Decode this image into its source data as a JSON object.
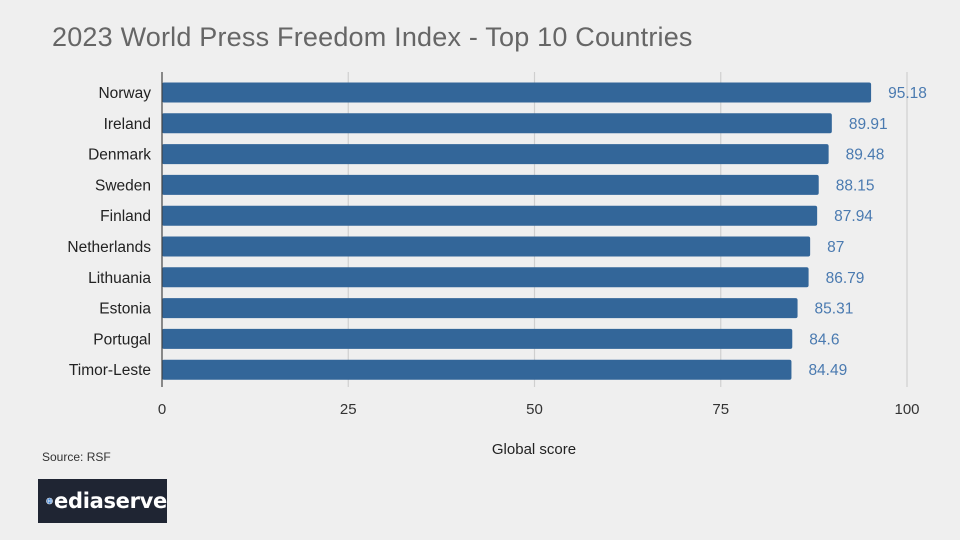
{
  "chart_data": {
    "type": "bar",
    "orientation": "horizontal",
    "title": "2023 World Press Freedom Index - Top 10 Countries",
    "xlabel": "Global score",
    "ylabel": "",
    "categories": [
      "Norway",
      "Ireland",
      "Denmark",
      "Sweden",
      "Finland",
      "Netherlands",
      "Lithuania",
      "Estonia",
      "Portugal",
      "Timor-Leste"
    ],
    "values": [
      95.18,
      89.91,
      89.48,
      88.15,
      87.94,
      87,
      86.79,
      85.31,
      84.6,
      84.49
    ],
    "data_labels": [
      "95.18",
      "89.91",
      "89.48",
      "88.15",
      "87.94",
      "87",
      "86.79",
      "85.31",
      "84.6",
      "84.49"
    ],
    "xlim": [
      0,
      100
    ],
    "xticks": [
      0,
      25,
      50,
      75,
      100
    ],
    "grid": "vertical",
    "bar_color": "#336699",
    "label_color": "#4a7ab0"
  },
  "source": "Source: RSF",
  "logo": {
    "text": "ediaserve",
    "icon": "m-waveform-icon",
    "background": "#1f2533",
    "icon_color": "#3a7fd0"
  }
}
